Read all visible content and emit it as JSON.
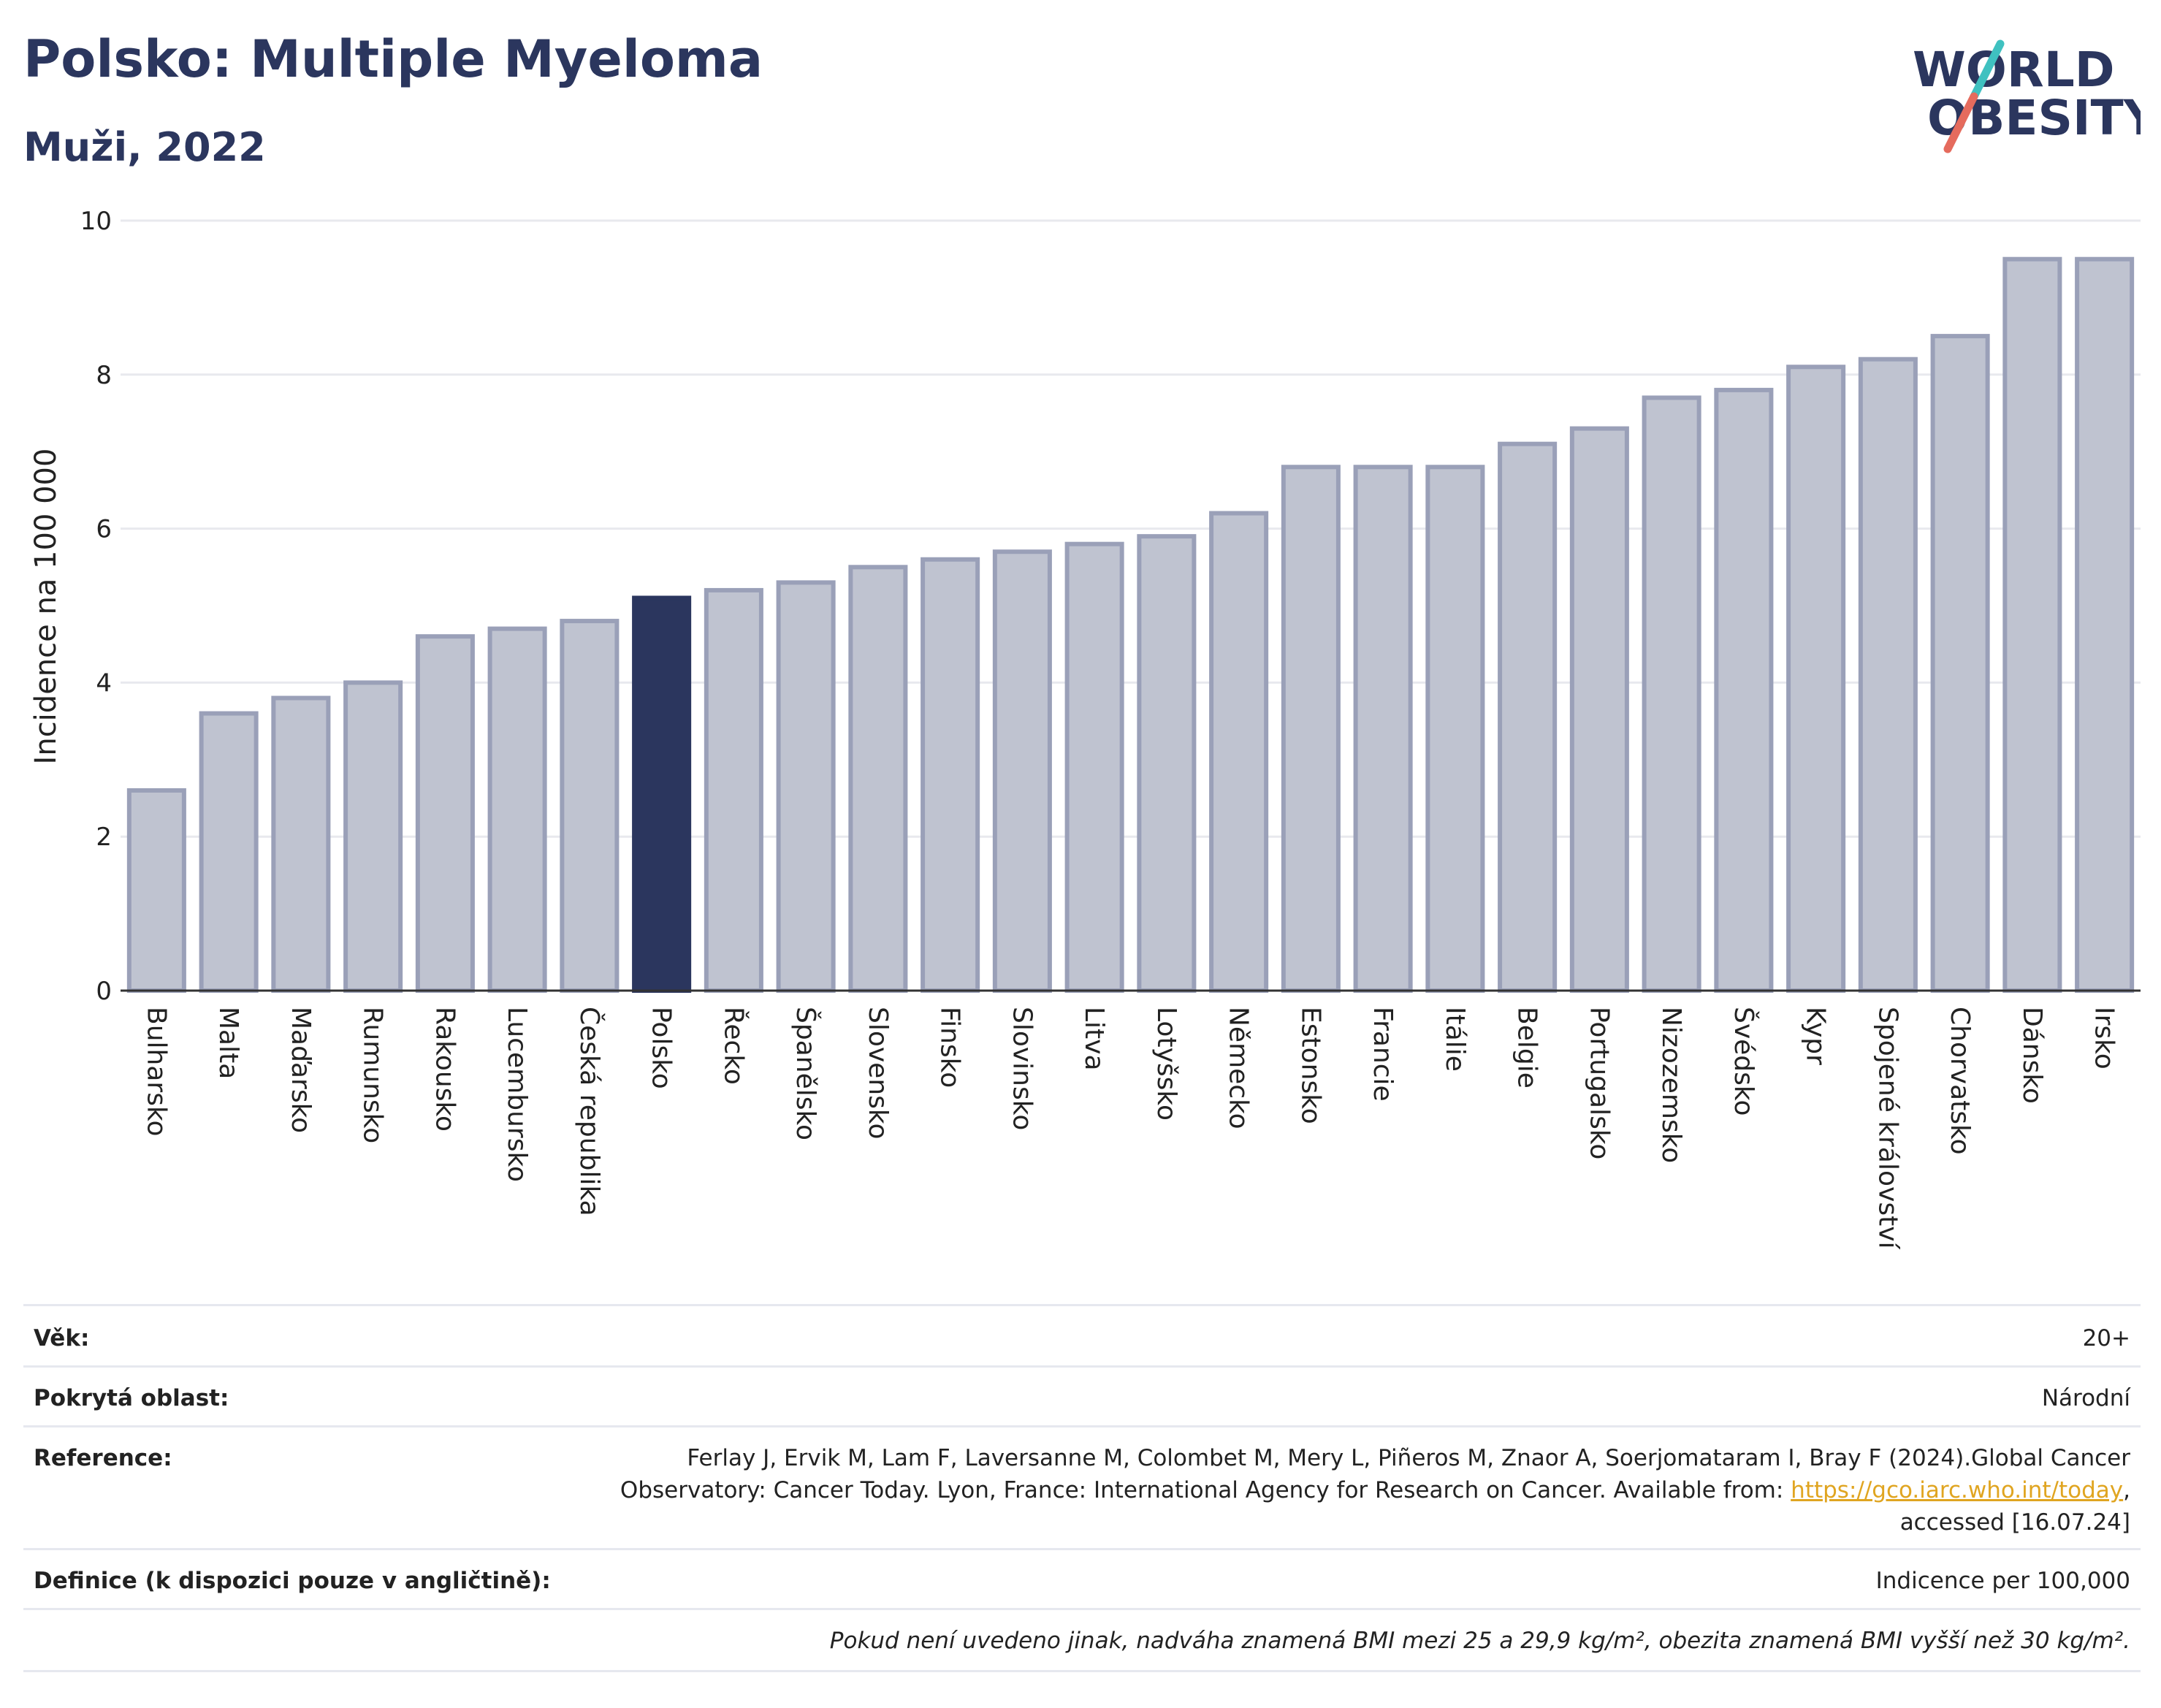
{
  "header": {
    "title": "Polsko: Multiple Myeloma",
    "subtitle": "Muži, 2022"
  },
  "logo": {
    "line1": "WORLD",
    "line2": "OBESITY",
    "slash_colors": [
      "#3fc1c0",
      "#e56b5d"
    ]
  },
  "colors": {
    "highlight": "#2b365e",
    "bar": "#bfc3d0",
    "bar_border": "#9aa0b8",
    "text_dark": "#2b365e"
  },
  "chart_data": {
    "type": "bar",
    "title": "",
    "ylabel": "Incidence na 100 000",
    "xlabel": "",
    "ylim": [
      0,
      10
    ],
    "yticks": [
      0,
      2,
      4,
      6,
      8,
      10
    ],
    "grid": true,
    "highlight": "Polsko",
    "categories": [
      "Bulharsko",
      "Malta",
      "Maďarsko",
      "Rumunsko",
      "Rakousko",
      "Lucembursko",
      "Česká republika",
      "Polsko",
      "Řecko",
      "Španělsko",
      "Slovensko",
      "Finsko",
      "Slovinsko",
      "Litva",
      "Lotyšsko",
      "Německo",
      "Estonsko",
      "Francie",
      "Itálie",
      "Belgie",
      "Portugalsko",
      "Nizozemsko",
      "Švédsko",
      "Kypr",
      "Spojené království",
      "Chorvatsko",
      "Dánsko",
      "Irsko"
    ],
    "values": [
      2.6,
      3.6,
      3.8,
      4.0,
      4.6,
      4.7,
      4.8,
      5.1,
      5.2,
      5.3,
      5.5,
      5.6,
      5.7,
      5.8,
      5.9,
      6.2,
      6.8,
      6.8,
      6.8,
      7.1,
      7.3,
      7.7,
      7.8,
      8.1,
      8.2,
      8.5,
      9.5,
      9.5
    ]
  },
  "meta": {
    "age_label": "Věk:",
    "age_value": "20+",
    "area_label": "Pokrytá oblast:",
    "area_value": "Národní",
    "reference_label": "Reference:",
    "reference_line1": "Ferlay J, Ervik M, Lam F, Laversanne M, Colombet M, Mery L, Piñeros M, Znaor A, Soerjomataram I, Bray F (2024).Global Cancer",
    "reference_line2a": "Observatory: Cancer Today. Lyon, France: International Agency for Research on Cancer. Available from: ",
    "reference_link": "https://gco.iarc.who.int/today",
    "reference_line2b": ",",
    "reference_line3": "accessed [16.07.24]",
    "definition_label": "Definice (k dispozici pouze v angličtině):",
    "definition_value": "Indicence per 100,000",
    "note": "Pokud není uvedeno jinak, nadváha znamená BMI mezi 25 a 29,9 kg/m², obezita znamená BMI vyšší než 30 kg/m²."
  }
}
